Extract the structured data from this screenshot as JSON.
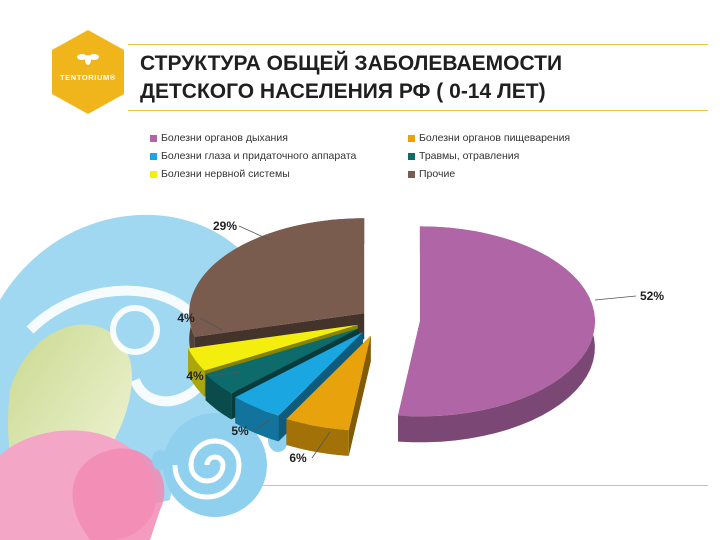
{
  "logo": {
    "text": "TENTORIUM®"
  },
  "title": {
    "line1": "СТРУКТУРА ОБЩЕЙ ЗАБОЛЕВАЕМОСТИ",
    "line2": "ДЕТСКОГО НАСЕЛЕНИЯ РФ ( 0-14 ЛЕТ)"
  },
  "chart_data": {
    "type": "pie",
    "style": "3d-exploded",
    "legend_position": "top",
    "series": [
      {
        "name": "Болезни органов дыхания",
        "value": 52,
        "label": "52%",
        "color": "#b065a6"
      },
      {
        "name": "Болезни органов пищеварения",
        "value": 6,
        "label": "6%",
        "color": "#e8a30c"
      },
      {
        "name": "Болезни глаза и придаточного аппарата",
        "value": 5,
        "label": "5%",
        "color": "#1aa6e0"
      },
      {
        "name": "Травмы, отравления",
        "value": 4,
        "label": "4%",
        "color": "#0e6b6b"
      },
      {
        "name": "Болезни нервной системы",
        "value": 4,
        "label": "4%",
        "color": "#f4ee0e"
      },
      {
        "name": "Прочие",
        "value": 29,
        "label": "29%",
        "color": "#7a5c4e"
      }
    ]
  }
}
